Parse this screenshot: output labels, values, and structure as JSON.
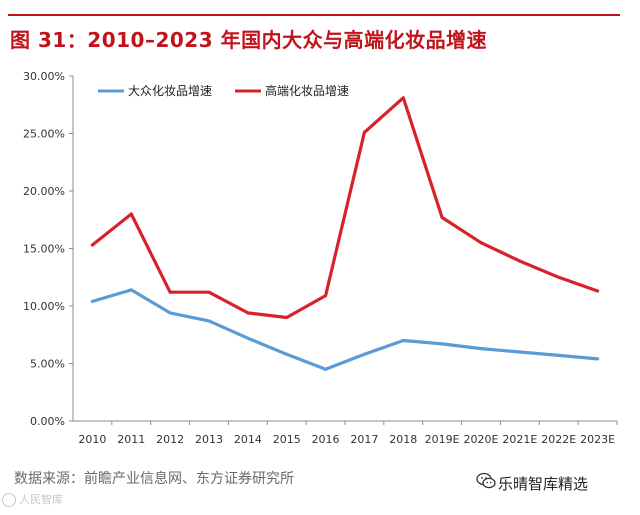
{
  "figure": {
    "title": "图 31：2010–2023 年国内大众与高端化妆品增速",
    "source": "数据来源：前瞻产业信息网、东方证券研究所",
    "watermark": "人民智库",
    "brand": "乐晴智库精选",
    "accent_color": "#c0141b",
    "brand_icon": "wechat-icon"
  },
  "chart_data": {
    "type": "line",
    "categories": [
      "2010",
      "2011",
      "2012",
      "2013",
      "2014",
      "2015",
      "2016",
      "2017",
      "2018",
      "2019E",
      "2020E",
      "2021E",
      "2022E",
      "2023E"
    ],
    "y_tick_labels": [
      "0.00%",
      "5.00%",
      "10.00%",
      "15.00%",
      "20.00%",
      "25.00%",
      "30.00%"
    ],
    "ylim": [
      0,
      30
    ],
    "y_unit": "%",
    "grid": false,
    "legend_position": "top-left",
    "series": [
      {
        "name": "大众化妆品增速",
        "color": "#5b9bd5",
        "values": [
          10.4,
          11.4,
          9.4,
          8.7,
          7.2,
          5.8,
          4.5,
          5.8,
          7.0,
          6.7,
          6.3,
          6.0,
          5.7,
          5.4
        ]
      },
      {
        "name": "高端化妆品增速",
        "color": "#d7222b",
        "values": [
          15.3,
          18.0,
          11.2,
          11.2,
          9.4,
          9.0,
          10.9,
          25.1,
          28.1,
          17.7,
          15.5,
          13.9,
          12.5,
          11.3
        ]
      }
    ]
  }
}
